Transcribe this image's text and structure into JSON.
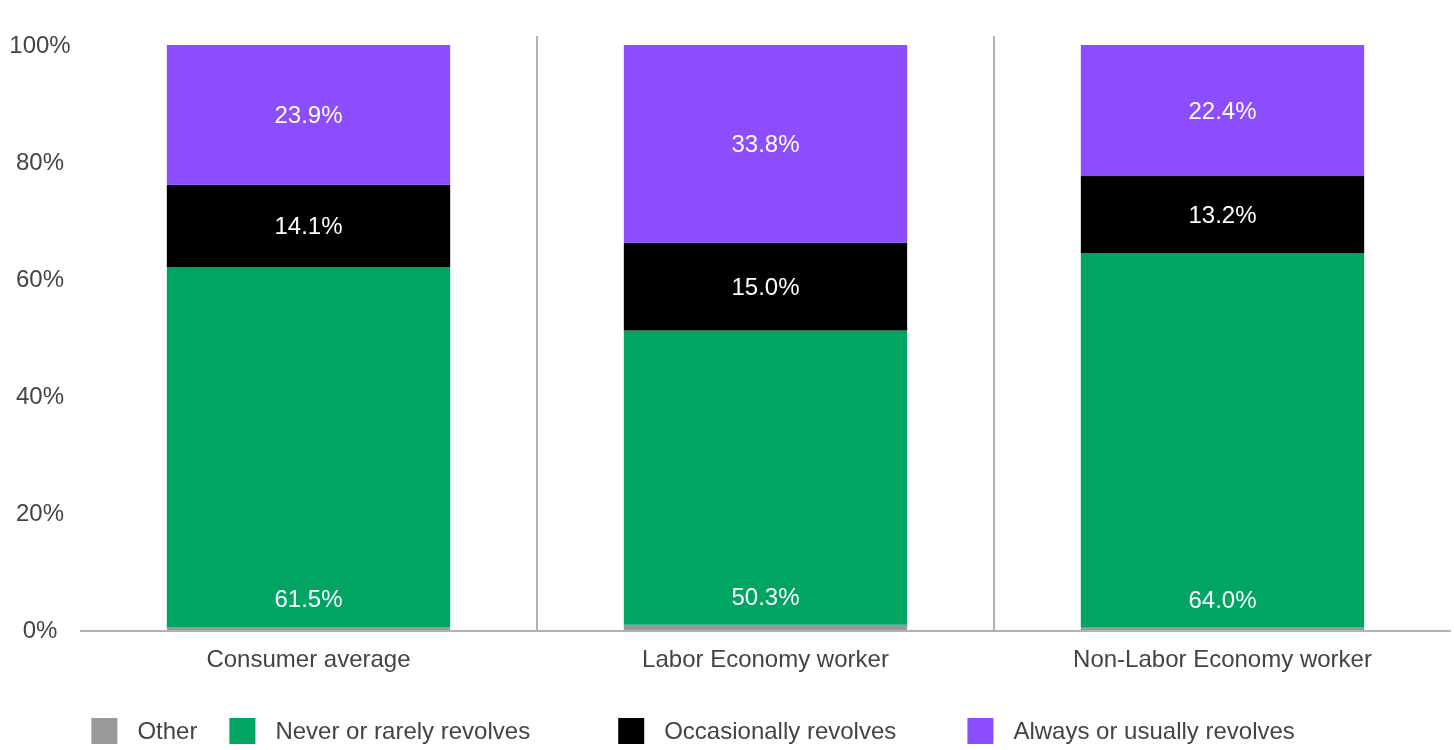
{
  "chart_data": {
    "type": "bar",
    "stacked": true,
    "categories": [
      "Consumer average",
      "Labor Economy worker",
      "Non-Labor Economy worker"
    ],
    "series": [
      {
        "name": "Other",
        "color": "#999999",
        "values": [
          0.5,
          0.9,
          0.4
        ],
        "value_labels": [
          null,
          null,
          null
        ]
      },
      {
        "name": "Never or rarely revolves",
        "color": "#00a463",
        "values": [
          61.5,
          50.3,
          64.0
        ],
        "value_labels": [
          "61.5%",
          "50.3%",
          "64.0%"
        ]
      },
      {
        "name": "Occasionally revolves",
        "color": "#000000",
        "values": [
          14.1,
          15.0,
          13.2
        ],
        "value_labels": [
          "14.1%",
          "15.0%",
          "13.2%"
        ]
      },
      {
        "name": "Always or usually revolves",
        "color": "#8c4dff",
        "values": [
          23.9,
          33.8,
          22.4
        ],
        "value_labels": [
          "23.9%",
          "33.8%",
          "22.4%"
        ]
      }
    ],
    "ylim": [
      0,
      100
    ],
    "yticks": [
      {
        "value": 0,
        "label": "0%"
      },
      {
        "value": 20,
        "label": "20%"
      },
      {
        "value": 40,
        "label": "40%"
      },
      {
        "value": 60,
        "label": "60%"
      },
      {
        "value": 80,
        "label": "80%"
      },
      {
        "value": 100,
        "label": "100%"
      }
    ],
    "grid": false,
    "legend": "bottom"
  }
}
